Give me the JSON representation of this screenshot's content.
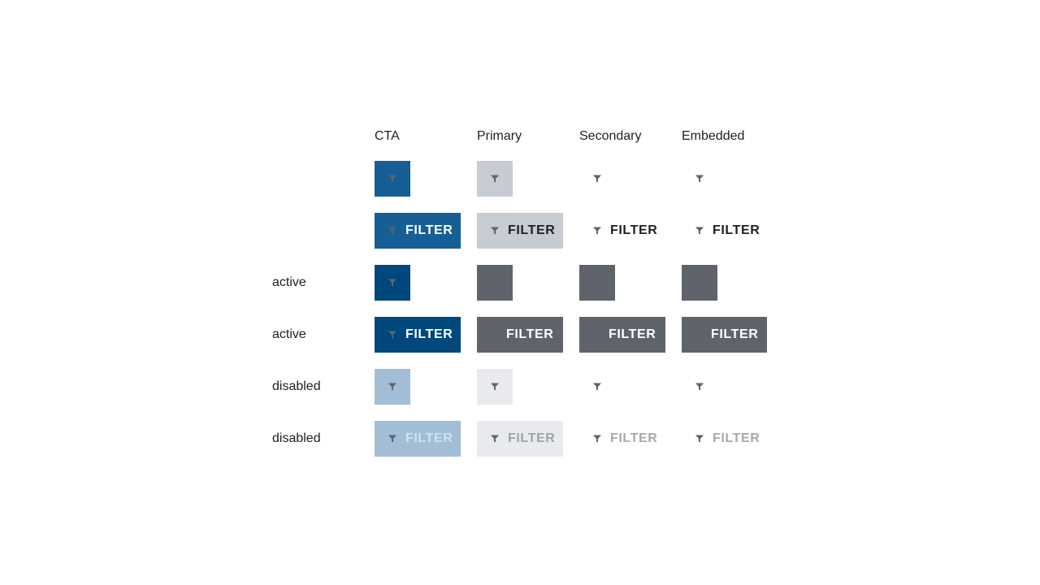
{
  "columns": {
    "cta": "CTA",
    "primary": "Primary",
    "secondary": "Secondary",
    "embedded": "Embedded"
  },
  "rows": {
    "active_icon": "active",
    "active_label": "active",
    "disabled_icon": "disabled",
    "disabled_label": "disabled"
  },
  "button_label": "FILTER",
  "icon": "filter-icon",
  "colors": {
    "cta": "#165e96",
    "cta_active": "#00477c",
    "cta_disabled": "#a2bed6",
    "primary": "#c7cbd2",
    "primary_disabled": "#e9eaed",
    "active_grey": "#5f636c",
    "icon": "#5f636c"
  }
}
